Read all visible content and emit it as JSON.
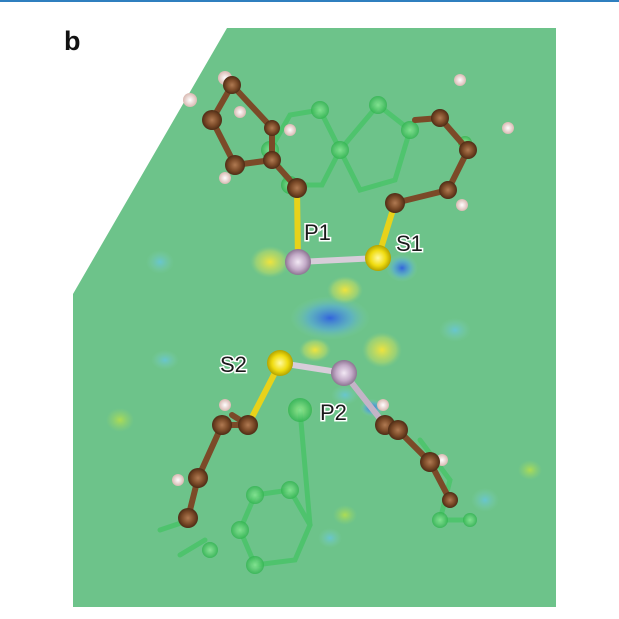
{
  "panel": {
    "letter": "b"
  },
  "atoms": {
    "p1_label": "P1",
    "s1_label": "S1",
    "s2_label": "S2",
    "p2_label": "P2"
  },
  "colors": {
    "header_rule": "#2f7fbf",
    "map_background": "#6dc38a",
    "density_positive": "#f0e33a",
    "density_negative": "#3a6ee0",
    "carbon": "#7b4a28",
    "hydrogen": "#f4d8d2",
    "phosphorus": "#c9b6cc",
    "sulfur": "#f2e21a",
    "ghost_molecule": "#3fc45f"
  }
}
